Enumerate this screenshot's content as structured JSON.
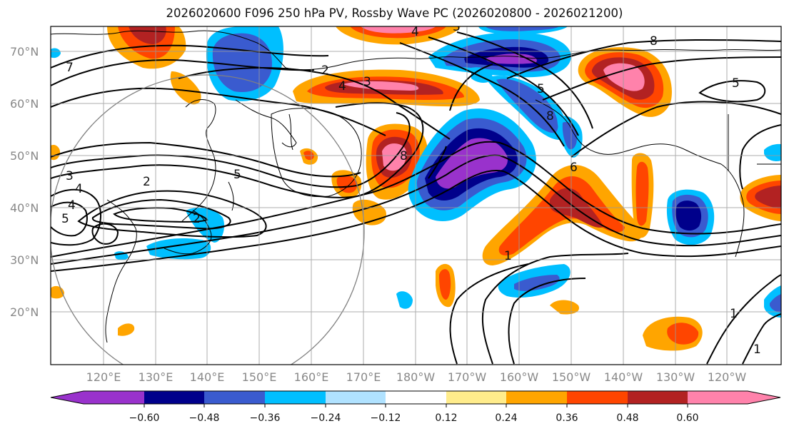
{
  "title": "2026020600 F096 250 hPa PV, Rossby Wave PC (2026020800 - 2026021200)",
  "lat_labels": [
    "70°N",
    "60°N",
    "50°N",
    "40°N",
    "30°N",
    "20°N"
  ],
  "lon_labels": [
    "120°E",
    "130°E",
    "140°E",
    "150°E",
    "160°E",
    "170°E",
    "180°W",
    "170°W",
    "160°W",
    "150°W",
    "140°W",
    "130°W",
    "120°W"
  ],
  "colorbar": {
    "tick_labels": [
      "−0.60",
      "−0.48",
      "−0.36",
      "−0.24",
      "−0.12",
      "0.12",
      "0.24",
      "0.36",
      "0.48",
      "0.60"
    ],
    "colors": [
      "#9932CC",
      "#00008B",
      "#3A5BCF",
      "#00BFFF",
      "#B0E2FF",
      "#FFFFFF",
      "#FFEC8B",
      "#FFA500",
      "#FF4500",
      "#B22222",
      "#FF82AB"
    ]
  },
  "contour_labels": [
    "2",
    "3",
    "4",
    "5",
    "8",
    "2",
    "3",
    "4",
    "5",
    "7",
    "8",
    "2",
    "5",
    "4",
    "3",
    "6",
    "1",
    "5",
    "8",
    "1",
    "1",
    "4"
  ],
  "map": {
    "extent": {
      "lon_min": 112,
      "lon_max": 253,
      "lat_min": 10,
      "lat_max": 75
    },
    "positive_fill_colors": [
      "#FFA500",
      "#FF4500",
      "#B22222",
      "#FF82AB"
    ],
    "negative_fill_colors": [
      "#00BFFF",
      "#3A5BCF",
      "#00008B",
      "#9932CC"
    ]
  }
}
